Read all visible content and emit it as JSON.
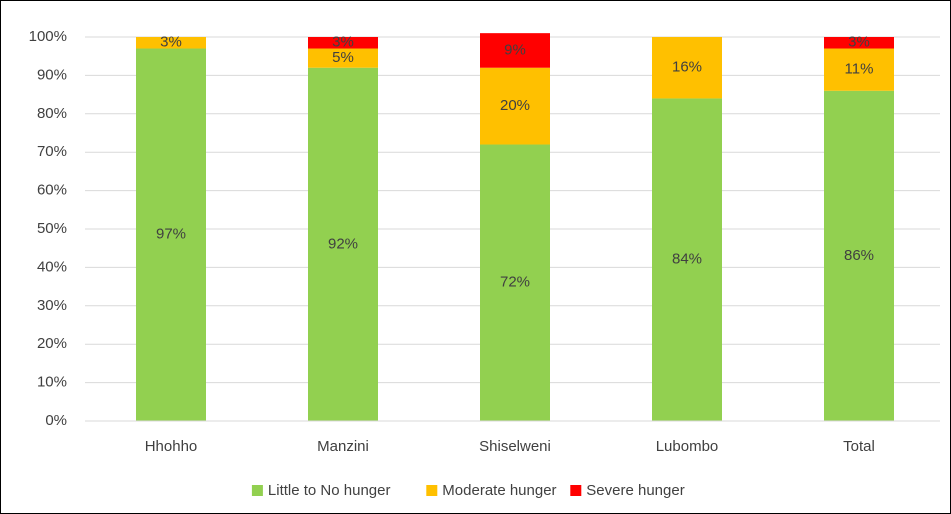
{
  "chart_data": {
    "type": "stacked_bar",
    "categories": [
      "Hhohho",
      "Manzini",
      "Shiselweni",
      "Lubombo",
      "Total"
    ],
    "series": [
      {
        "name": "Little to No hunger",
        "color": "#92d050",
        "values": [
          97,
          92,
          72,
          84,
          86
        ],
        "value_labels": [
          "97%",
          "92%",
          "72%",
          "84%",
          "86%"
        ]
      },
      {
        "name": "Moderate hunger",
        "color": "#ffc000",
        "values": [
          3,
          5,
          20,
          16,
          11
        ],
        "value_labels": [
          "3%",
          "5%",
          "20%",
          "16%",
          "11%"
        ]
      },
      {
        "name": "Severe hunger",
        "color": "#ff0000",
        "values": [
          null,
          3,
          9,
          null,
          3
        ],
        "value_labels": [
          null,
          "3%",
          "9%",
          null,
          "3%"
        ]
      }
    ],
    "ylim": [
      0,
      100
    ],
    "yticks": [
      {
        "value": 0,
        "label": "0%"
      },
      {
        "value": 10,
        "label": "10%"
      },
      {
        "value": 20,
        "label": "20%"
      },
      {
        "value": 30,
        "label": "30%"
      },
      {
        "value": 40,
        "label": "40%"
      },
      {
        "value": 50,
        "label": "50%"
      },
      {
        "value": 60,
        "label": "60%"
      },
      {
        "value": 70,
        "label": "70%"
      },
      {
        "value": 80,
        "label": "80%"
      },
      {
        "value": 90,
        "label": "90%"
      },
      {
        "value": 100,
        "label": "100%"
      }
    ],
    "grid": true,
    "legend": "bottom"
  }
}
